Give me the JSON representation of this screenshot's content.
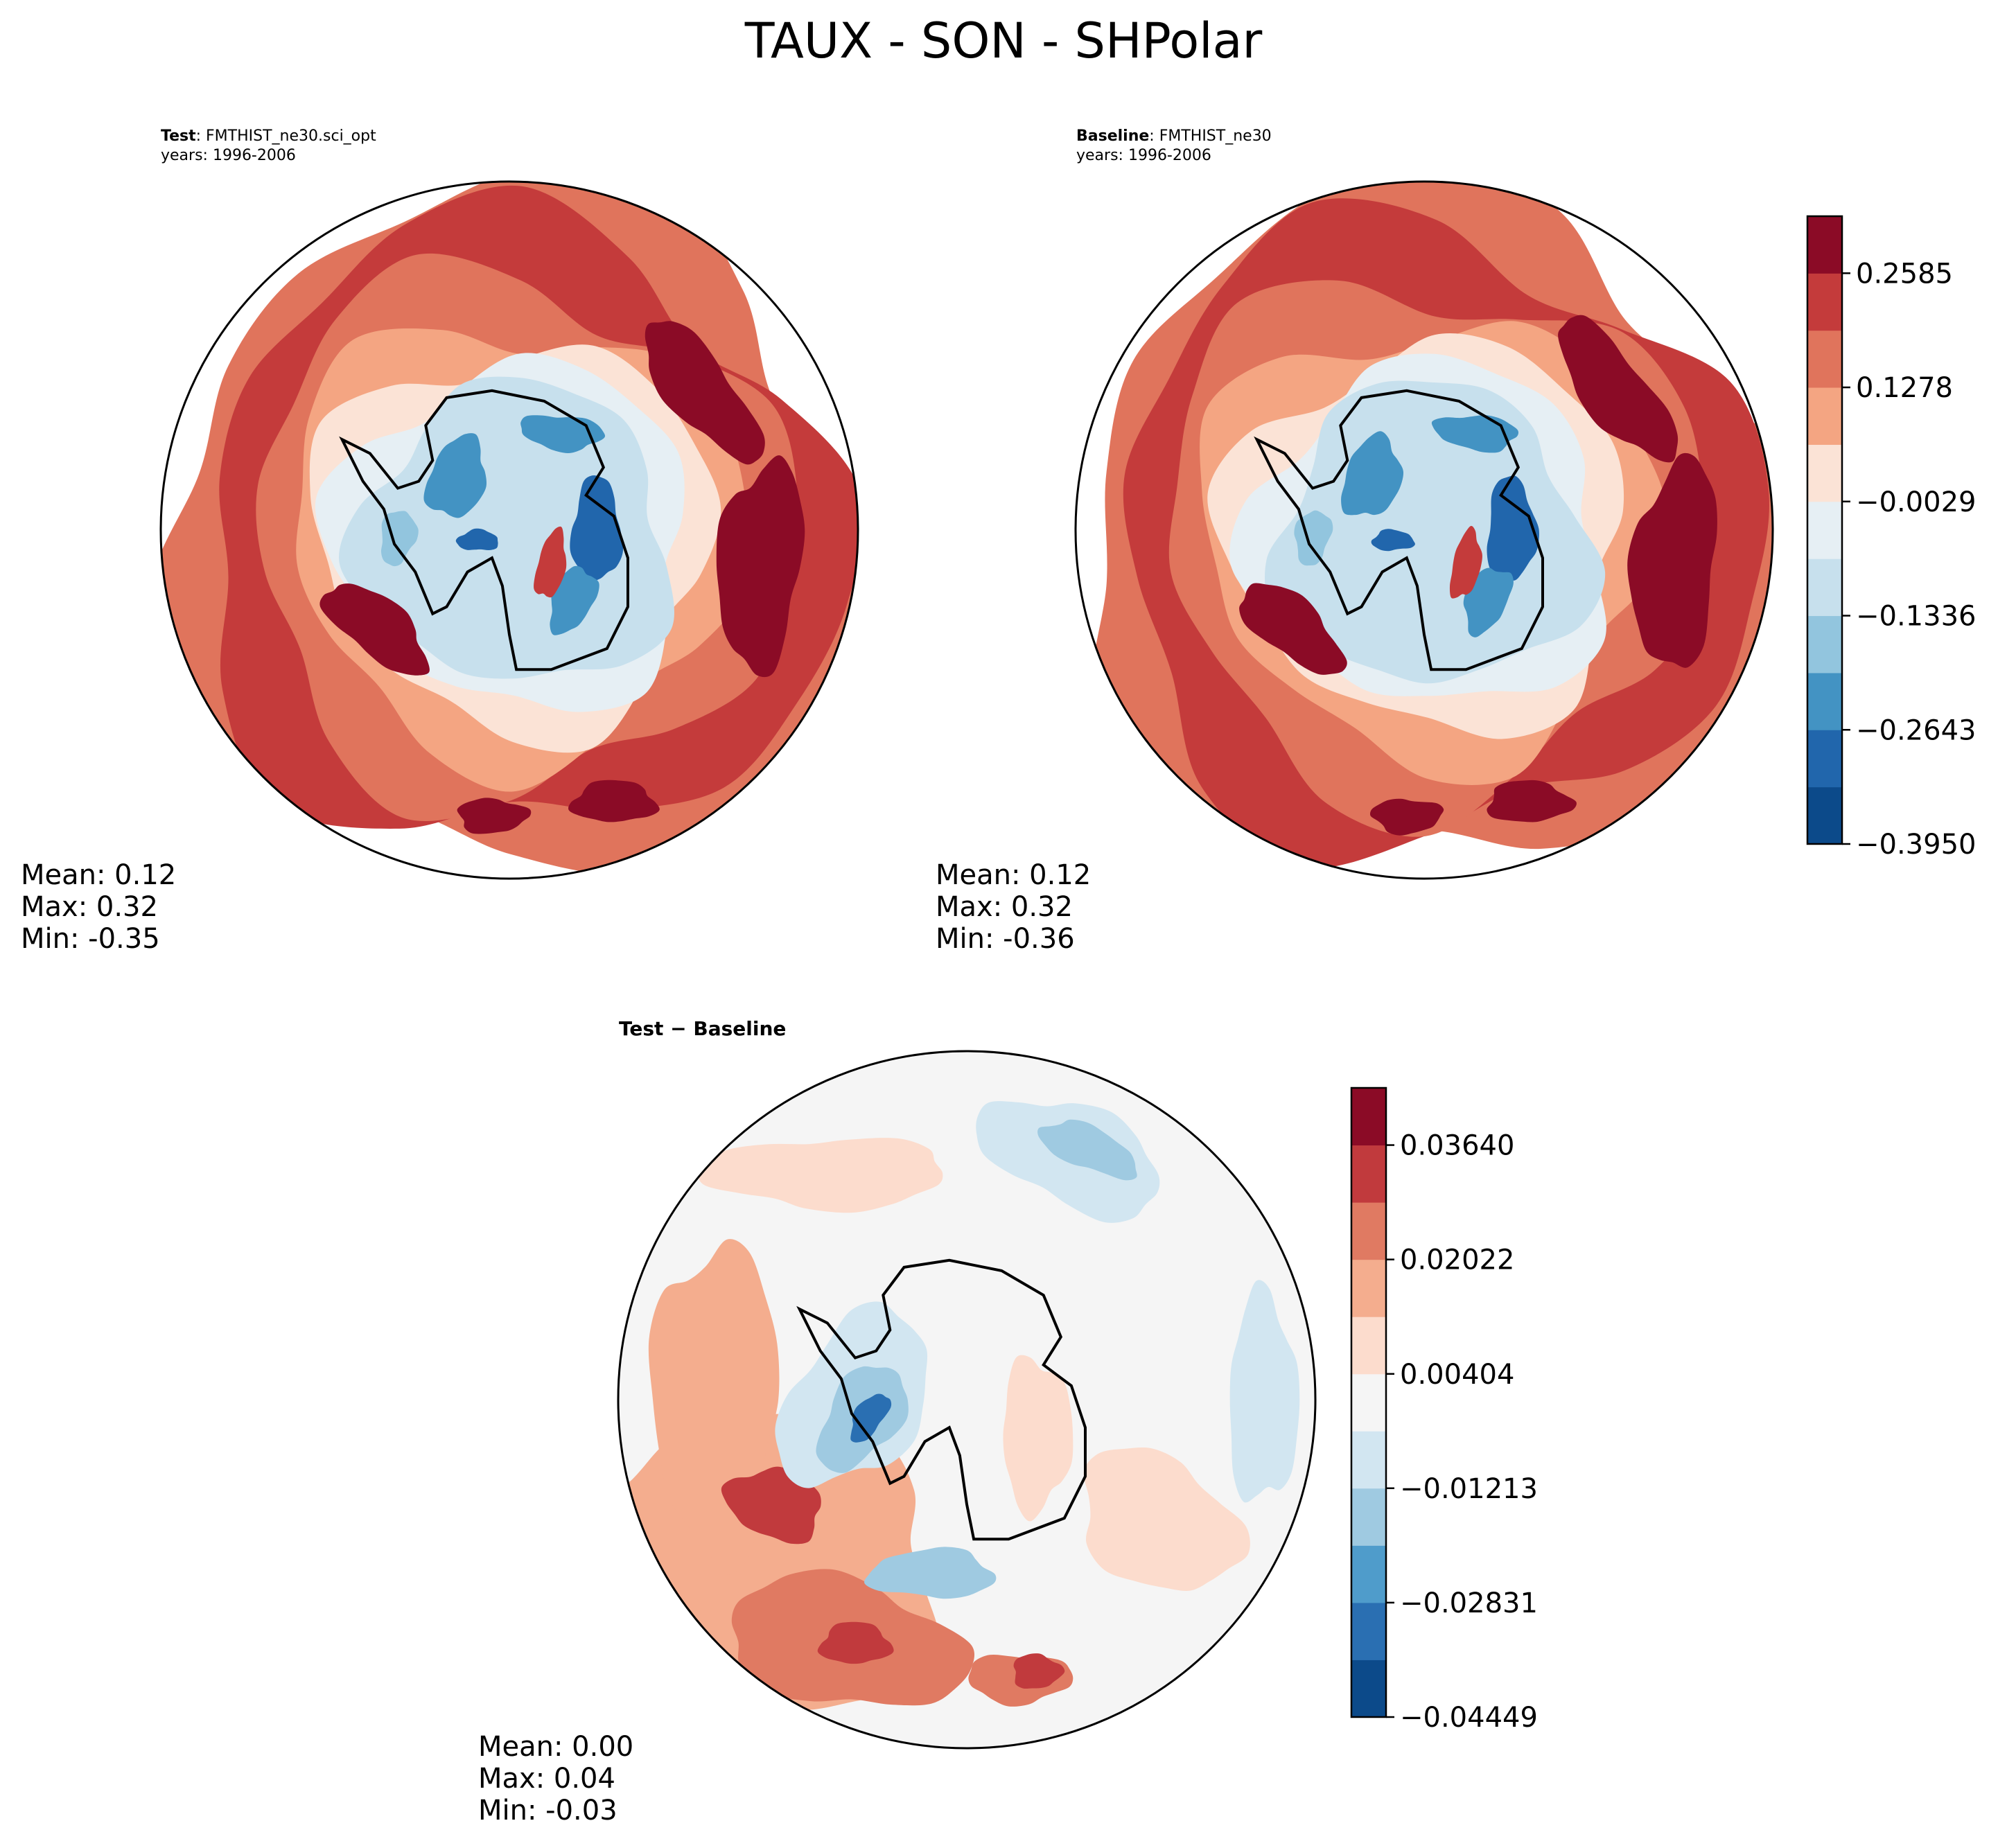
{
  "figure_title": "TAUX - SON - SHPolar",
  "panels": {
    "test": {
      "label_bold": "Test",
      "label_rest": ": FMTHIST_ne30.sci_opt",
      "years": "years: 1996-2006",
      "stats": {
        "mean": "Mean:  0.12",
        "max": "Max:  0.32",
        "min": "Min: -0.35"
      }
    },
    "baseline": {
      "label_bold": "Baseline",
      "label_rest": ": FMTHIST_ne30",
      "years": "years: 1996-2006",
      "stats": {
        "mean": "Mean:  0.12",
        "max": "Max:  0.32",
        "min": "Min: -0.36"
      }
    },
    "diff": {
      "title": "Test − Baseline",
      "stats": {
        "mean": "Mean:  0.00",
        "max": "Max:  0.04",
        "min": "Min: -0.03"
      }
    }
  },
  "colors": {
    "main_levels": [
      "#0c4a8a",
      "#2166ac",
      "#4393c3",
      "#92c5de",
      "#c7e0ed",
      "#e6eff4",
      "#fbe3d6",
      "#f4a582",
      "#e0745c",
      "#c43b3b",
      "#8b0b26"
    ],
    "diff_levels": [
      "#0c4a8a",
      "#2a6fb2",
      "#4f9ccb",
      "#9fcae1",
      "#d2e6f1",
      "#f5f5f5",
      "#fcdccd",
      "#f4ad8e",
      "#e07a62",
      "#c13a3d",
      "#8b0b26"
    ],
    "coast": "#000000"
  },
  "chart_data": [
    {
      "type": "contour-map",
      "title": "Test: FMTHIST_ne30.sci_opt",
      "projection": "south-polar-stereographic",
      "variable": "TAUX",
      "season": "SON",
      "mean": 0.12,
      "max": 0.32,
      "min": -0.35,
      "colorbar": "shared with baseline"
    },
    {
      "type": "contour-map",
      "title": "Baseline: FMTHIST_ne30",
      "projection": "south-polar-stereographic",
      "variable": "TAUX",
      "season": "SON",
      "mean": 0.12,
      "max": 0.32,
      "min": -0.36,
      "colorbar": {
        "levels": [
          -0.395,
          -0.3297,
          -0.2643,
          -0.199,
          -0.1336,
          -0.0683,
          -0.0029,
          0.0624,
          0.1278,
          0.1931,
          0.2585,
          0.3238
        ],
        "tick_values": [
          -0.395,
          -0.2643,
          -0.1336,
          -0.0029,
          0.1278,
          0.2585
        ],
        "tick_labels": [
          "−0.3950",
          "−0.2643",
          "−0.1336",
          "−0.0029",
          "0.1278",
          "0.2585"
        ]
      }
    },
    {
      "type": "contour-map",
      "title": "Test − Baseline",
      "projection": "south-polar-stereographic",
      "variable": "TAUX difference",
      "season": "SON",
      "mean": 0.0,
      "max": 0.04,
      "min": -0.03,
      "colorbar": {
        "levels": [
          -0.04449,
          -0.0364,
          -0.02831,
          -0.02022,
          -0.01213,
          -0.00404,
          0.00404,
          0.01213,
          0.02022,
          0.02831,
          0.0364,
          0.04449
        ],
        "tick_values": [
          -0.04449,
          -0.02831,
          -0.01213,
          0.00404,
          0.02022,
          0.0364
        ],
        "tick_labels": [
          "−0.04449",
          "−0.02831",
          "−0.01213",
          "0.00404",
          "0.02022",
          "0.03640"
        ]
      }
    }
  ]
}
